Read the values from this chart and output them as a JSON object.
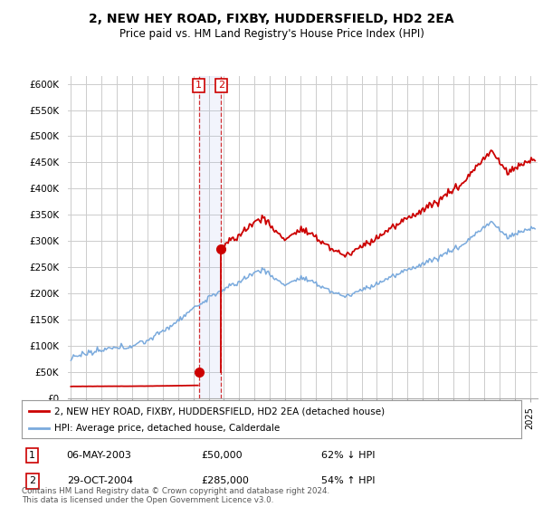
{
  "title": "2, NEW HEY ROAD, FIXBY, HUDDERSFIELD, HD2 2EA",
  "subtitle": "Price paid vs. HM Land Registry's House Price Index (HPI)",
  "title_fontsize": 10,
  "subtitle_fontsize": 8.5,
  "ylabel_ticks": [
    "£0",
    "£50K",
    "£100K",
    "£150K",
    "£200K",
    "£250K",
    "£300K",
    "£350K",
    "£400K",
    "£450K",
    "£500K",
    "£550K",
    "£600K"
  ],
  "ytick_values": [
    0,
    50000,
    100000,
    150000,
    200000,
    250000,
    300000,
    350000,
    400000,
    450000,
    500000,
    550000,
    600000
  ],
  "ylim": [
    0,
    615000
  ],
  "xlim_start": 1994.8,
  "xlim_end": 2025.5,
  "sale1_date": 2003.35,
  "sale1_price": 50000,
  "sale1_label": "1",
  "sale2_date": 2004.82,
  "sale2_price": 285000,
  "sale2_label": "2",
  "property_color": "#cc0000",
  "hpi_color": "#7aaadd",
  "legend_property": "2, NEW HEY ROAD, FIXBY, HUDDERSFIELD, HD2 2EA (detached house)",
  "legend_hpi": "HPI: Average price, detached house, Calderdale",
  "table_rows": [
    {
      "num": "1",
      "date": "06-MAY-2003",
      "price": "£50,000",
      "pct": "62% ↓ HPI"
    },
    {
      "num": "2",
      "date": "29-OCT-2004",
      "price": "£285,000",
      "pct": "54% ↑ HPI"
    }
  ],
  "footnote": "Contains HM Land Registry data © Crown copyright and database right 2024.\nThis data is licensed under the Open Government Licence v3.0.",
  "background_color": "#ffffff",
  "grid_color": "#cccccc",
  "num_points": 370
}
